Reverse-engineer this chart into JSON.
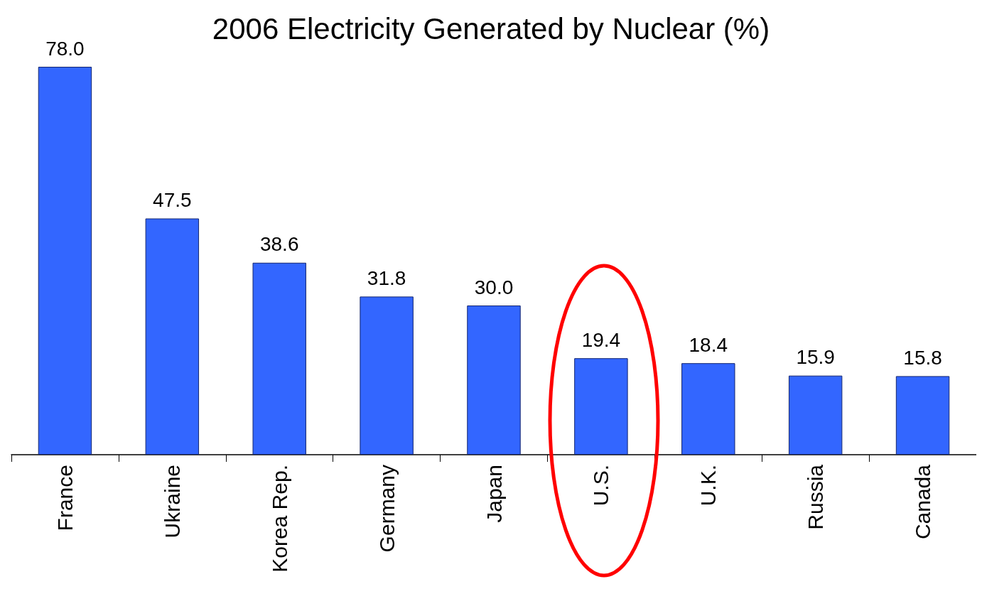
{
  "chart_data": {
    "type": "bar",
    "title": "2006 Electricity Generated by Nuclear (%)",
    "categories": [
      "France",
      "Ukraine",
      "Korea Rep.",
      "Germany",
      "Japan",
      "U.S.",
      "U.K.",
      "Russia",
      "Canada"
    ],
    "values": [
      78.0,
      47.5,
      38.6,
      31.8,
      30.0,
      19.4,
      18.4,
      15.9,
      15.8
    ],
    "color": "#3366ff",
    "value_labels": [
      "78.0",
      "47.5",
      "38.6",
      "31.8",
      "30.0",
      "19.4",
      "18.4",
      "15.9",
      "15.8"
    ],
    "grid": false
  }
}
